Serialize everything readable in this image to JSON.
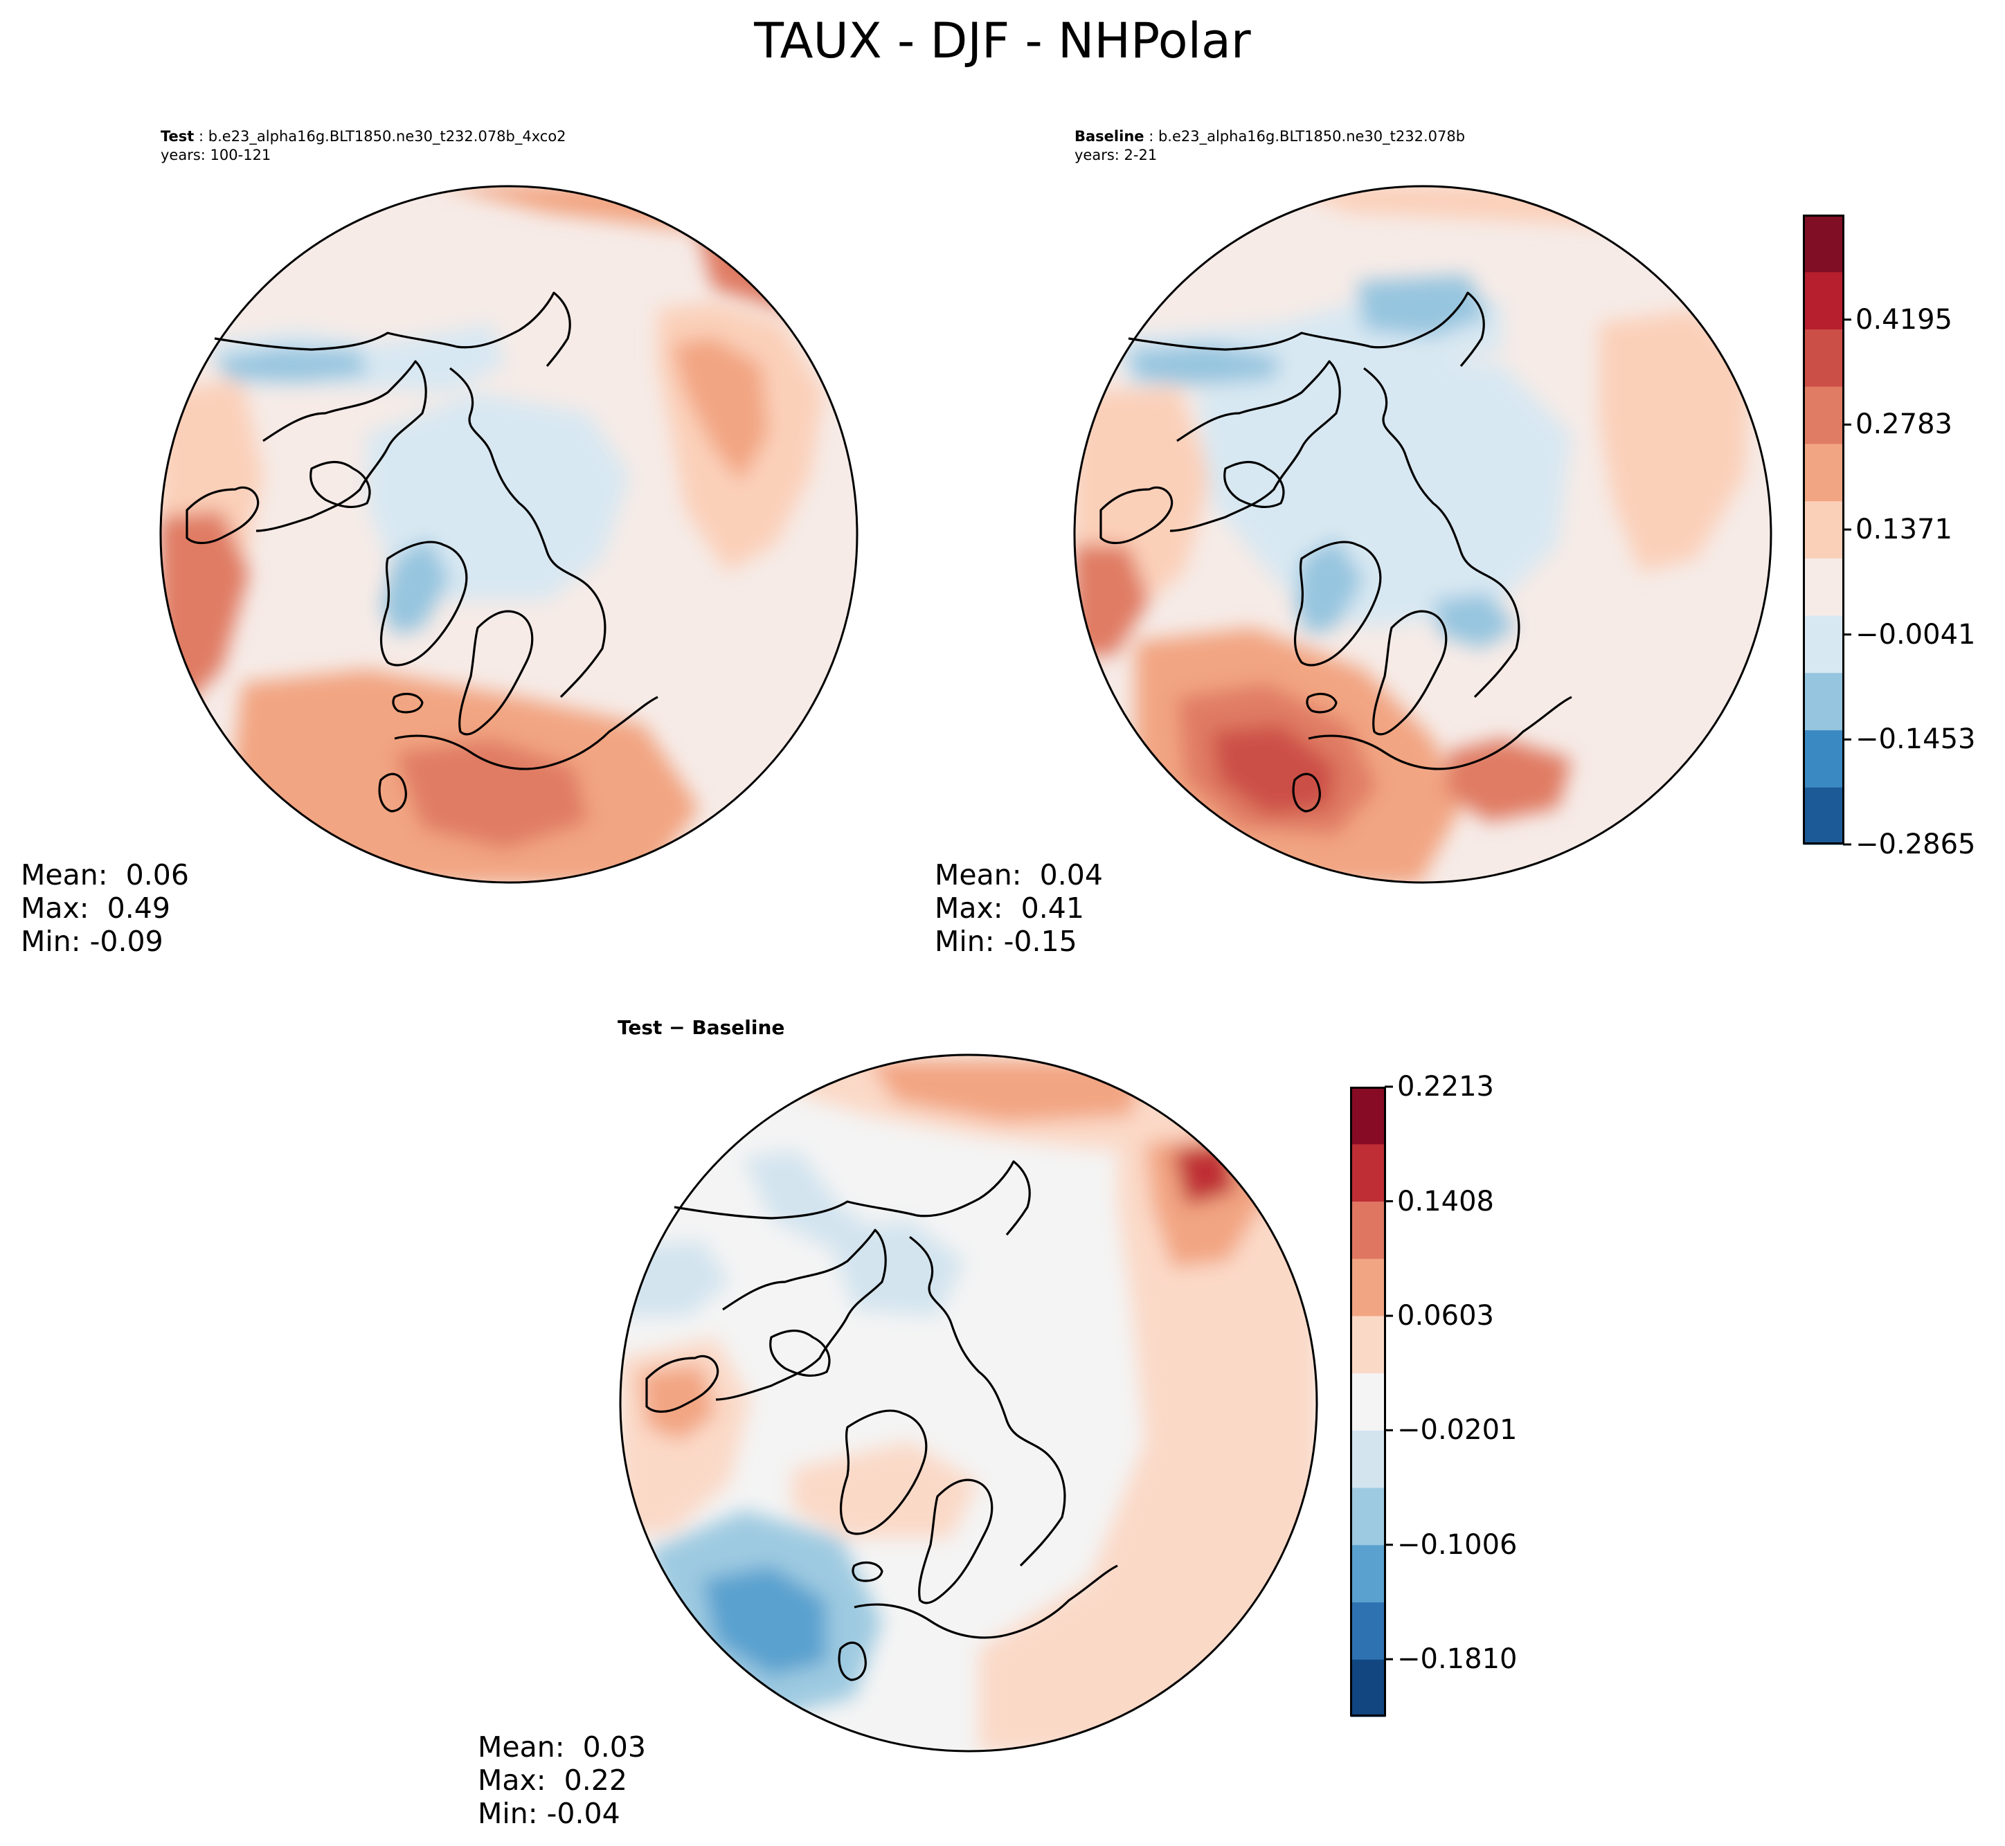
{
  "figure": {
    "title": "TAUX - DJF - NHPolar"
  },
  "panels": {
    "test": {
      "label": "Test",
      "case": "b.e23_alpha16g.BLT1850.ne30_t232.078b_4xco2",
      "years": "years: 100-121",
      "mean_label": "Mean:",
      "mean": "0.06",
      "max_label": "Max:",
      "max": "0.49",
      "min_label": "Min:",
      "min": "-0.09"
    },
    "baseline": {
      "label": "Baseline",
      "case": "b.e23_alpha16g.BLT1850.ne30_t232.078b",
      "years": "years: 2-21",
      "mean_label": "Mean:",
      "mean": "0.04",
      "max_label": "Max:",
      "max": "0.41",
      "min_label": "Min:",
      "min": "-0.15"
    },
    "diff": {
      "title": "Test − Baseline",
      "mean_label": "Mean:",
      "mean": "0.03",
      "max_label": "Max:",
      "max": "0.22",
      "min_label": "Min:",
      "min": "-0.04"
    }
  },
  "colorbars": {
    "main": {
      "ticks": [
        "0.4195",
        "0.2783",
        "0.1371",
        "−0.0041",
        "−0.1453",
        "−0.2865"
      ],
      "tick_values": [
        0.4195,
        0.2783,
        0.1371,
        -0.0041,
        -0.1453,
        -0.2865
      ],
      "range": [
        -0.2865,
        0.5608
      ],
      "colors": [
        "#1b5a97",
        "#3b89c2",
        "#96c5df",
        "#d8e8f2",
        "#f6ebe7",
        "#fbd0b9",
        "#f2a582",
        "#e07c64",
        "#cc4f47",
        "#b71f2e",
        "#800f25"
      ]
    },
    "diff": {
      "ticks": [
        "0.2213",
        "0.1408",
        "0.0603",
        "−0.0201",
        "−0.1006",
        "−0.1810"
      ],
      "tick_values": [
        0.2213,
        0.1408,
        0.0603,
        -0.0201,
        -0.1006,
        -0.181
      ],
      "range": [
        -0.2213,
        0.2213
      ],
      "colors": [
        "#114680",
        "#2f72b1",
        "#5aa1cf",
        "#9ecae1",
        "#d3e4ef",
        "#f4f4f4",
        "#fbd9c7",
        "#f2a582",
        "#df7662",
        "#bf2d35",
        "#870b24"
      ]
    }
  }
}
